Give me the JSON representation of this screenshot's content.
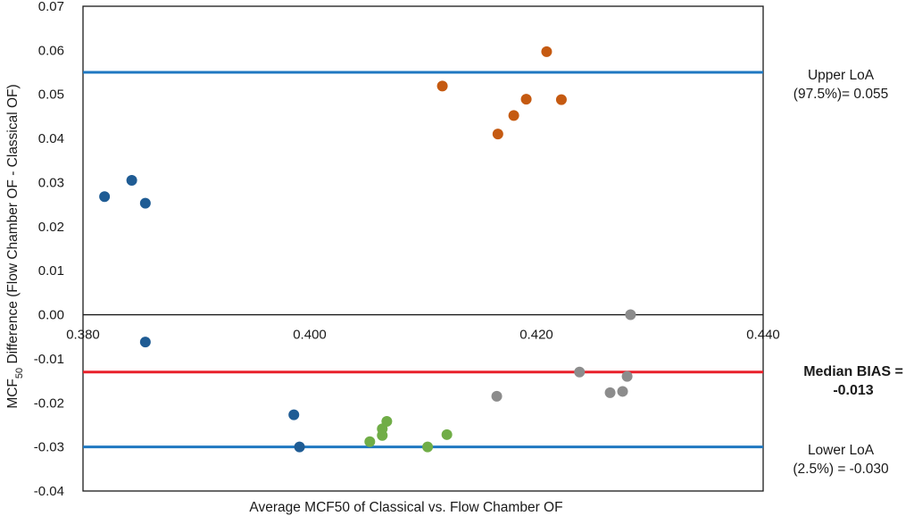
{
  "chart_data": {
    "type": "scatter",
    "xlabel": "Average MCF50 of Classical vs. Flow  Chamber OF",
    "ylabel_main": "MCF",
    "ylabel_sub": "50",
    "ylabel_rest": " Difference (Flow Chamber OF - Classical OF)",
    "xlim": [
      0.38,
      0.44
    ],
    "ylim": [
      -0.04,
      0.07
    ],
    "x_ticks": [
      "0.380",
      "0.400",
      "0.420",
      "0.440"
    ],
    "y_ticks": [
      "0.07",
      "0.06",
      "0.05",
      "0.04",
      "0.03",
      "0.02",
      "0.01",
      "0.00",
      "-0.01",
      "-0.02",
      "-0.03",
      "-0.04"
    ],
    "grid": false,
    "series": [
      {
        "color": "#1f5c94",
        "points": [
          [
            0.3819,
            0.0268
          ],
          [
            0.3843,
            0.0305
          ],
          [
            0.3855,
            0.0253
          ],
          [
            0.3855,
            -0.0062
          ],
          [
            0.3986,
            -0.0227
          ],
          [
            0.3991,
            -0.03
          ]
        ]
      },
      {
        "color": "#c55a11",
        "points": [
          [
            0.4117,
            0.0519
          ],
          [
            0.4166,
            0.041
          ],
          [
            0.418,
            0.0452
          ],
          [
            0.4191,
            0.0489
          ],
          [
            0.4209,
            0.0597
          ],
          [
            0.4222,
            0.0488
          ]
        ]
      },
      {
        "color": "#70ad47",
        "points": [
          [
            0.4053,
            -0.0288
          ],
          [
            0.4064,
            -0.0259
          ],
          [
            0.4064,
            -0.0274
          ],
          [
            0.4068,
            -0.0242
          ],
          [
            0.4104,
            -0.03
          ],
          [
            0.4121,
            -0.0272
          ]
        ]
      },
      {
        "color": "#8c8c8c",
        "points": [
          [
            0.4165,
            -0.0185
          ],
          [
            0.4238,
            -0.013
          ],
          [
            0.4265,
            -0.0177
          ],
          [
            0.4276,
            -0.0174
          ],
          [
            0.428,
            -0.014
          ],
          [
            0.4283,
            0.0
          ]
        ]
      }
    ],
    "reference_lines": [
      {
        "name": "upper",
        "y": 0.055,
        "color": "#1f78c1",
        "label_line1": "Upper LoA",
        "label_line2": "(97.5%)=  0.055"
      },
      {
        "name": "bias",
        "y": -0.013,
        "color": "#e8202a",
        "label_line1": "Median BIAS =",
        "label_line2": "-0.013"
      },
      {
        "name": "lower",
        "y": -0.03,
        "color": "#1f78c1",
        "label_line1": "Lower LoA",
        "label_line2": "(2.5%) = -0.030"
      }
    ]
  }
}
